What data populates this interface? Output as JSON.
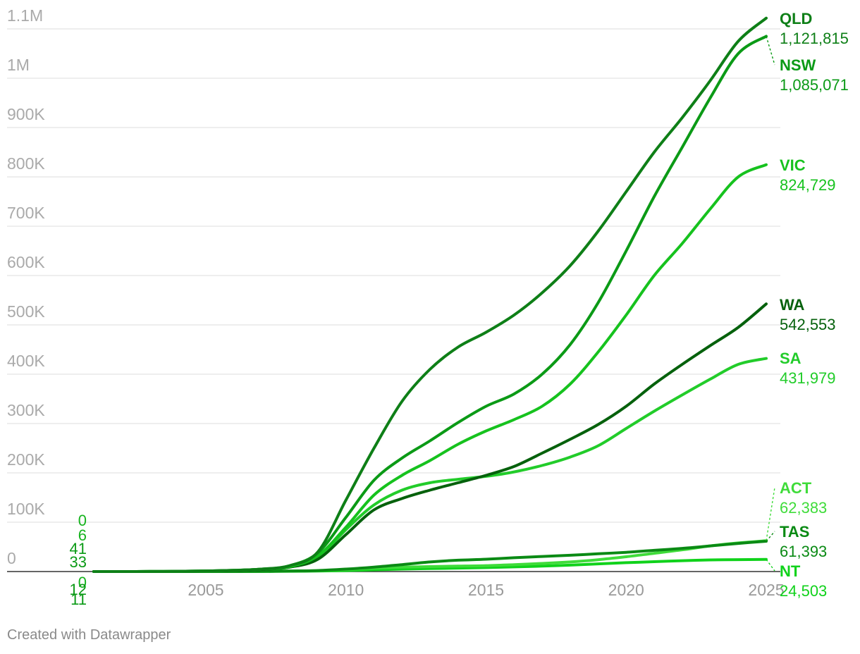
{
  "colors": {
    "QLD": "#0e7f17",
    "NSW": "#0b9a16",
    "VIC": "#16c21e",
    "WA": "#05610c",
    "SA": "#22cc2a",
    "ACT": "#3fdc3a",
    "TAS": "#0a8a14",
    "NT": "#10d21b"
  },
  "chart_data": {
    "type": "line",
    "title": "",
    "xlabel": "",
    "ylabel": "",
    "xlim": [
      2001,
      2025
    ],
    "ylim": [
      0,
      1100000
    ],
    "y_ticks": [
      {
        "value": 0,
        "label": "0"
      },
      {
        "value": 100000,
        "label": "100K"
      },
      {
        "value": 200000,
        "label": "200K"
      },
      {
        "value": 300000,
        "label": "300K"
      },
      {
        "value": 400000,
        "label": "400K"
      },
      {
        "value": 500000,
        "label": "500K"
      },
      {
        "value": 600000,
        "label": "600K"
      },
      {
        "value": 700000,
        "label": "700K"
      },
      {
        "value": 800000,
        "label": "800K"
      },
      {
        "value": 900000,
        "label": "900K"
      },
      {
        "value": 1000000,
        "label": "1M"
      },
      {
        "value": 1100000,
        "label": "1.1M"
      }
    ],
    "x_ticks": [
      {
        "value": 2005,
        "label": "2005"
      },
      {
        "value": 2010,
        "label": "2010"
      },
      {
        "value": 2015,
        "label": "2015"
      },
      {
        "value": 2020,
        "label": "2020"
      },
      {
        "value": 2025,
        "label": "2025"
      }
    ],
    "start_labels": [
      "0",
      "6",
      "41",
      "33",
      "0",
      "12",
      "11"
    ],
    "series": [
      {
        "name": "QLD",
        "end_label": "1,121,815",
        "x": [
          2001,
          2002,
          2003,
          2004,
          2005,
          2006,
          2007,
          2008,
          2009,
          2010,
          2011,
          2012,
          2013,
          2014,
          2015,
          2016,
          2017,
          2018,
          2019,
          2020,
          2021,
          2022,
          2023,
          2024,
          2025
        ],
        "values": [
          0,
          0,
          100,
          500,
          1200,
          2500,
          5000,
          12000,
          40000,
          145000,
          250000,
          345000,
          410000,
          455000,
          485000,
          520000,
          565000,
          620000,
          690000,
          770000,
          850000,
          920000,
          995000,
          1075000,
          1121815
        ]
      },
      {
        "name": "NSW",
        "end_label": "1,085,071",
        "x": [
          2001,
          2002,
          2003,
          2004,
          2005,
          2006,
          2007,
          2008,
          2009,
          2010,
          2011,
          2012,
          2013,
          2014,
          2015,
          2016,
          2017,
          2018,
          2019,
          2020,
          2021,
          2022,
          2023,
          2024,
          2025
        ],
        "values": [
          0,
          0,
          100,
          500,
          1200,
          2500,
          5000,
          12000,
          38000,
          110000,
          185000,
          230000,
          265000,
          302000,
          335000,
          360000,
          400000,
          460000,
          545000,
          650000,
          760000,
          860000,
          960000,
          1050000,
          1085071
        ]
      },
      {
        "name": "VIC",
        "end_label": "824,729",
        "x": [
          2001,
          2002,
          2003,
          2004,
          2005,
          2006,
          2007,
          2008,
          2009,
          2010,
          2011,
          2012,
          2013,
          2014,
          2015,
          2016,
          2017,
          2018,
          2019,
          2020,
          2021,
          2022,
          2023,
          2024,
          2025
        ],
        "values": [
          0,
          0,
          100,
          500,
          1200,
          2500,
          5000,
          10000,
          32000,
          90000,
          155000,
          195000,
          225000,
          258000,
          285000,
          308000,
          335000,
          380000,
          445000,
          520000,
          600000,
          665000,
          735000,
          800000,
          824729
        ]
      },
      {
        "name": "WA",
        "end_label": "542,553",
        "x": [
          2001,
          2002,
          2003,
          2004,
          2005,
          2006,
          2007,
          2008,
          2009,
          2010,
          2011,
          2012,
          2013,
          2014,
          2015,
          2016,
          2017,
          2018,
          2019,
          2020,
          2021,
          2022,
          2023,
          2024,
          2025
        ],
        "values": [
          0,
          0,
          100,
          400,
          1000,
          2000,
          4000,
          9000,
          25000,
          75000,
          125000,
          148000,
          165000,
          180000,
          195000,
          213000,
          240000,
          268000,
          298000,
          335000,
          380000,
          420000,
          458000,
          495000,
          542553
        ]
      },
      {
        "name": "SA",
        "end_label": "431,979",
        "x": [
          2001,
          2002,
          2003,
          2004,
          2005,
          2006,
          2007,
          2008,
          2009,
          2010,
          2011,
          2012,
          2013,
          2014,
          2015,
          2016,
          2017,
          2018,
          2019,
          2020,
          2021,
          2022,
          2023,
          2024,
          2025
        ],
        "values": [
          0,
          0,
          100,
          400,
          1000,
          2000,
          4000,
          9000,
          28000,
          85000,
          135000,
          165000,
          180000,
          187000,
          193000,
          202000,
          215000,
          232000,
          255000,
          290000,
          325000,
          358000,
          390000,
          420000,
          431979
        ]
      },
      {
        "name": "ACT",
        "end_label": "62,383",
        "x": [
          2001,
          2002,
          2003,
          2004,
          2005,
          2006,
          2007,
          2008,
          2009,
          2010,
          2011,
          2012,
          2013,
          2014,
          2015,
          2016,
          2017,
          2018,
          2019,
          2020,
          2021,
          2022,
          2023,
          2024,
          2025
        ],
        "values": [
          0,
          0,
          0,
          0,
          100,
          200,
          500,
          1000,
          2000,
          4000,
          7000,
          9000,
          10000,
          11000,
          12000,
          14000,
          16500,
          19500,
          24000,
          30000,
          37000,
          44000,
          52000,
          58000,
          62383
        ]
      },
      {
        "name": "TAS",
        "end_label": "61,393",
        "x": [
          2001,
          2002,
          2003,
          2004,
          2005,
          2006,
          2007,
          2008,
          2009,
          2010,
          2011,
          2012,
          2013,
          2014,
          2015,
          2016,
          2017,
          2018,
          2019,
          2020,
          2021,
          2022,
          2023,
          2024,
          2025
        ],
        "values": [
          0,
          0,
          0,
          0,
          100,
          200,
          500,
          1000,
          2000,
          5000,
          9000,
          14000,
          19500,
          23000,
          25000,
          28000,
          30500,
          33000,
          36000,
          39000,
          43000,
          47000,
          52000,
          57000,
          61393
        ]
      },
      {
        "name": "NT",
        "end_label": "24,503",
        "x": [
          2001,
          2002,
          2003,
          2004,
          2005,
          2006,
          2007,
          2008,
          2009,
          2010,
          2011,
          2012,
          2013,
          2014,
          2015,
          2016,
          2017,
          2018,
          2019,
          2020,
          2021,
          2022,
          2023,
          2024,
          2025
        ],
        "values": [
          0,
          0,
          0,
          0,
          50,
          100,
          200,
          500,
          1000,
          2000,
          3500,
          5000,
          6000,
          7000,
          8000,
          9500,
          11000,
          13000,
          15500,
          18000,
          20000,
          22000,
          23500,
          24200,
          24503
        ]
      }
    ]
  },
  "footer": {
    "credit": "Created with Datawrapper"
  }
}
